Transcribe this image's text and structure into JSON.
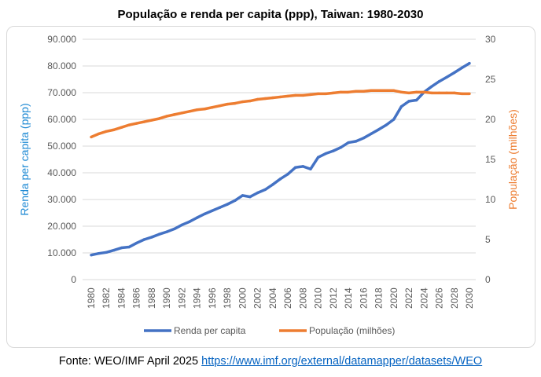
{
  "chart_data": {
    "type": "line",
    "title": "População e renda per capita (ppp), Taiwan: 1980-2030",
    "ylabel_left": "Renda per capita (ppp)",
    "ylabel_right": "População (milhões)",
    "ylim_left": [
      0,
      90000
    ],
    "ylim_right": [
      0,
      30
    ],
    "yticks_left": [
      "0",
      "10.000",
      "20.000",
      "30.000",
      "40.000",
      "50.000",
      "60.000",
      "70.000",
      "80.000",
      "90.000"
    ],
    "yticks_right": [
      "0",
      "5",
      "10",
      "15",
      "20",
      "25",
      "30"
    ],
    "x": [
      1980,
      1981,
      1982,
      1983,
      1984,
      1985,
      1986,
      1987,
      1988,
      1989,
      1990,
      1991,
      1992,
      1993,
      1994,
      1995,
      1996,
      1997,
      1998,
      1999,
      2000,
      2001,
      2002,
      2003,
      2004,
      2005,
      2006,
      2007,
      2008,
      2009,
      2010,
      2011,
      2012,
      2013,
      2014,
      2015,
      2016,
      2017,
      2018,
      2019,
      2020,
      2021,
      2022,
      2023,
      2024,
      2025,
      2026,
      2027,
      2028,
      2029,
      2030
    ],
    "xticks": [
      "1980",
      "1982",
      "1984",
      "1986",
      "1988",
      "1990",
      "1992",
      "1994",
      "1996",
      "1998",
      "2000",
      "2002",
      "2004",
      "2006",
      "2008",
      "2010",
      "2012",
      "2014",
      "2016",
      "2018",
      "2020",
      "2022",
      "2024",
      "2026",
      "2028",
      "2030"
    ],
    "grid": true,
    "legend": "bottom",
    "series": [
      {
        "name": "Renda per capita",
        "axis": "left",
        "color": "#4472c4",
        "values": [
          9200,
          9800,
          10200,
          11000,
          11900,
          12200,
          13700,
          15000,
          15900,
          17000,
          17900,
          19000,
          20500,
          21700,
          23200,
          24600,
          25800,
          27000,
          28200,
          29600,
          31500,
          31000,
          32500,
          33700,
          35600,
          37700,
          39500,
          42000,
          42400,
          41400,
          45800,
          47200,
          48200,
          49500,
          51300,
          51800,
          53000,
          54600,
          56200,
          57900,
          60000,
          64800,
          66800,
          67200,
          70200,
          72300,
          74200,
          75800,
          77500,
          79300,
          81000
        ]
      },
      {
        "name": "População (milhões)",
        "axis": "right",
        "color": "#ed7d31",
        "values": [
          17.8,
          18.2,
          18.5,
          18.7,
          19.0,
          19.3,
          19.5,
          19.7,
          19.9,
          20.1,
          20.4,
          20.6,
          20.8,
          21.0,
          21.2,
          21.3,
          21.5,
          21.7,
          21.9,
          22.0,
          22.2,
          22.3,
          22.5,
          22.6,
          22.7,
          22.8,
          22.9,
          23.0,
          23.0,
          23.1,
          23.2,
          23.2,
          23.3,
          23.4,
          23.4,
          23.5,
          23.5,
          23.6,
          23.6,
          23.6,
          23.6,
          23.4,
          23.3,
          23.4,
          23.4,
          23.3,
          23.3,
          23.3,
          23.3,
          23.2,
          23.2
        ]
      }
    ]
  },
  "source": {
    "prefix": "Fonte: WEO/IMF April 2025 ",
    "link": "https://www.imf.org/external/datamapper/datasets/WEO"
  }
}
